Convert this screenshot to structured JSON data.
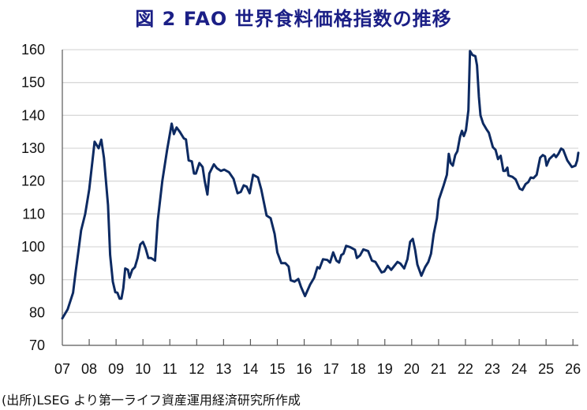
{
  "title": "図 2  FAO 世界食料価格指数の推移",
  "footnote": "(出所)LSEG より第一ライフ資産運用経済研究所作成",
  "colors": {
    "title": "#1b1f86",
    "line": "#0d2a62",
    "grid": "#d9d9d9",
    "axis": "#595959"
  },
  "chart_data": {
    "type": "line",
    "title": "図 2  FAO 世界食料価格指数の推移",
    "xlabel": "",
    "ylabel": "",
    "xlim": [
      2007,
      2026
    ],
    "ylim": [
      70,
      160
    ],
    "grid": true,
    "legend": "none",
    "y_ticks": [
      "70",
      "80",
      "90",
      "100",
      "110",
      "120",
      "130",
      "140",
      "150",
      "160"
    ],
    "x_ticks": [
      "07",
      "08",
      "09",
      "10",
      "11",
      "12",
      "13",
      "14",
      "15",
      "16",
      "17",
      "18",
      "19",
      "20",
      "21",
      "22",
      "23",
      "24",
      "25",
      "26"
    ],
    "series": [
      {
        "points": [
          [
            2007.0,
            78.2
          ],
          [
            2007.2,
            81
          ],
          [
            2007.4,
            86
          ],
          [
            2007.5,
            92.6
          ],
          [
            2007.6,
            98.7
          ],
          [
            2007.7,
            105
          ],
          [
            2007.85,
            110
          ],
          [
            2008.0,
            117.5
          ],
          [
            2008.15,
            128.3
          ],
          [
            2008.2,
            132
          ],
          [
            2008.35,
            130
          ],
          [
            2008.45,
            132.6
          ],
          [
            2008.55,
            127
          ],
          [
            2008.7,
            112.7
          ],
          [
            2008.78,
            97.5
          ],
          [
            2008.88,
            89.4
          ],
          [
            2008.97,
            86.2
          ],
          [
            2009.05,
            86
          ],
          [
            2009.13,
            84.2
          ],
          [
            2009.2,
            84.2
          ],
          [
            2009.27,
            87.4
          ],
          [
            2009.34,
            93.4
          ],
          [
            2009.44,
            93
          ],
          [
            2009.5,
            90.6
          ],
          [
            2009.6,
            93
          ],
          [
            2009.7,
            93.8
          ],
          [
            2009.8,
            96.6
          ],
          [
            2009.9,
            100.7
          ],
          [
            2010.0,
            101.5
          ],
          [
            2010.1,
            99.5
          ],
          [
            2010.2,
            96.6
          ],
          [
            2010.3,
            96.6
          ],
          [
            2010.45,
            95.8
          ],
          [
            2010.55,
            107.9
          ],
          [
            2010.72,
            120
          ],
          [
            2010.9,
            129.5
          ],
          [
            2011.07,
            137.5
          ],
          [
            2011.15,
            134.3
          ],
          [
            2011.25,
            136.3
          ],
          [
            2011.37,
            135
          ],
          [
            2011.52,
            133
          ],
          [
            2011.6,
            132.7
          ],
          [
            2011.7,
            126.3
          ],
          [
            2011.82,
            126
          ],
          [
            2011.9,
            122.3
          ],
          [
            2011.97,
            122.3
          ],
          [
            2012.1,
            125.5
          ],
          [
            2012.22,
            124.3
          ],
          [
            2012.3,
            120
          ],
          [
            2012.4,
            115.9
          ],
          [
            2012.47,
            122.3
          ],
          [
            2012.64,
            125.1
          ],
          [
            2012.75,
            123.9
          ],
          [
            2012.9,
            123.1
          ],
          [
            2013.02,
            123.5
          ],
          [
            2013.2,
            122.7
          ],
          [
            2013.37,
            120.7
          ],
          [
            2013.52,
            116.3
          ],
          [
            2013.64,
            116.7
          ],
          [
            2013.75,
            118.7
          ],
          [
            2013.86,
            118.3
          ],
          [
            2013.97,
            116.3
          ],
          [
            2014.1,
            121.9
          ],
          [
            2014.28,
            121.1
          ],
          [
            2014.4,
            117.5
          ],
          [
            2014.6,
            109.5
          ],
          [
            2014.75,
            108.7
          ],
          [
            2014.9,
            103.9
          ],
          [
            2015.0,
            98.3
          ],
          [
            2015.15,
            95
          ],
          [
            2015.3,
            95
          ],
          [
            2015.42,
            94
          ],
          [
            2015.5,
            89.8
          ],
          [
            2015.64,
            89.4
          ],
          [
            2015.78,
            90.2
          ],
          [
            2015.88,
            87.8
          ],
          [
            2016.03,
            85
          ],
          [
            2016.22,
            88.5
          ],
          [
            2016.37,
            90.6
          ],
          [
            2016.49,
            93.8
          ],
          [
            2016.57,
            93.4
          ],
          [
            2016.7,
            96.2
          ],
          [
            2016.86,
            96
          ],
          [
            2016.96,
            95.2
          ],
          [
            2017.08,
            98.3
          ],
          [
            2017.2,
            95.8
          ],
          [
            2017.3,
            95.2
          ],
          [
            2017.38,
            97.5
          ],
          [
            2017.46,
            97.9
          ],
          [
            2017.56,
            100.3
          ],
          [
            2017.71,
            99.9
          ],
          [
            2017.89,
            99.1
          ],
          [
            2017.96,
            96.6
          ],
          [
            2018.08,
            97.4
          ],
          [
            2018.2,
            99.2
          ],
          [
            2018.38,
            98.7
          ],
          [
            2018.52,
            95.8
          ],
          [
            2018.65,
            95.4
          ],
          [
            2018.88,
            92.2
          ],
          [
            2018.98,
            92.5
          ],
          [
            2019.11,
            94.2
          ],
          [
            2019.24,
            93
          ],
          [
            2019.47,
            95.4
          ],
          [
            2019.58,
            94.9
          ],
          [
            2019.72,
            93.4
          ],
          [
            2019.84,
            96.2
          ],
          [
            2019.94,
            101.5
          ],
          [
            2020.04,
            102.4
          ],
          [
            2020.13,
            99
          ],
          [
            2020.21,
            94.6
          ],
          [
            2020.36,
            91.2
          ],
          [
            2020.5,
            93.8
          ],
          [
            2020.62,
            95.4
          ],
          [
            2020.72,
            97.9
          ],
          [
            2020.82,
            103.9
          ],
          [
            2020.94,
            108.7
          ],
          [
            2021.01,
            114.3
          ],
          [
            2021.19,
            118.7
          ],
          [
            2021.31,
            121.9
          ],
          [
            2021.38,
            128.3
          ],
          [
            2021.45,
            125.5
          ],
          [
            2021.53,
            124.7
          ],
          [
            2021.62,
            127.9
          ],
          [
            2021.7,
            129.1
          ],
          [
            2021.8,
            133.5
          ],
          [
            2021.87,
            135.3
          ],
          [
            2021.94,
            133.7
          ],
          [
            2022.02,
            135.5
          ],
          [
            2022.11,
            141.6
          ],
          [
            2022.17,
            159.6
          ],
          [
            2022.26,
            158.4
          ],
          [
            2022.37,
            158
          ],
          [
            2022.43,
            155.2
          ],
          [
            2022.5,
            145.6
          ],
          [
            2022.56,
            140
          ],
          [
            2022.66,
            137.5
          ],
          [
            2022.78,
            135.8
          ],
          [
            2022.87,
            134.7
          ],
          [
            2023.02,
            130.3
          ],
          [
            2023.12,
            129.5
          ],
          [
            2023.21,
            126.7
          ],
          [
            2023.31,
            127.7
          ],
          [
            2023.41,
            123.1
          ],
          [
            2023.48,
            123.1
          ],
          [
            2023.56,
            124.1
          ],
          [
            2023.6,
            121.7
          ],
          [
            2023.75,
            121.3
          ],
          [
            2023.87,
            120.5
          ],
          [
            2024.02,
            117.7
          ],
          [
            2024.12,
            117.3
          ],
          [
            2024.24,
            119.1
          ],
          [
            2024.34,
            119.7
          ],
          [
            2024.43,
            121.1
          ],
          [
            2024.53,
            120.9
          ],
          [
            2024.65,
            121.9
          ],
          [
            2024.78,
            127.1
          ],
          [
            2024.88,
            127.9
          ],
          [
            2024.96,
            127.5
          ],
          [
            2025.02,
            124.7
          ],
          [
            2025.12,
            126.7
          ],
          [
            2025.3,
            128.1
          ],
          [
            2025.37,
            127.3
          ],
          [
            2025.46,
            128.3
          ],
          [
            2025.56,
            129.9
          ],
          [
            2025.64,
            129.5
          ],
          [
            2025.79,
            126.3
          ],
          [
            2025.96,
            124.3
          ],
          [
            2026.09,
            124.7
          ],
          [
            2026.16,
            126.3
          ],
          [
            2026.2,
            128.6
          ]
        ]
      }
    ]
  }
}
